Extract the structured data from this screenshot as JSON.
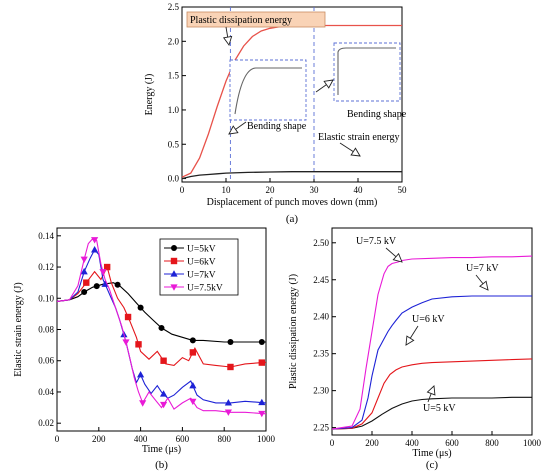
{
  "chart_data": [
    {
      "panel": "a",
      "type": "line",
      "caption": "(a)",
      "xlabel": "Displacement of punch moves down (mm)",
      "ylabel": "Energy (J)",
      "xlim": [
        0,
        50
      ],
      "ylim": [
        -0.05,
        2.5
      ],
      "xticks": [
        "0",
        "10",
        "20",
        "30",
        "40",
        "50"
      ],
      "yticks": [
        "0.0",
        "0.5",
        "1.0",
        "1.5",
        "2.0",
        "2.5"
      ],
      "grid": false,
      "colors": {
        "plastic": "#e8524a",
        "elastic": "#222222",
        "marker_line": "#5b6fd6",
        "note_fill": "#f9d3b6"
      },
      "series": [
        {
          "name": "Plastic dissipation energy",
          "x": [
            0,
            2,
            4,
            6,
            8,
            10,
            12,
            14,
            16,
            18,
            20,
            22,
            24,
            26,
            28,
            30,
            35,
            40,
            45,
            50
          ],
          "y": [
            0.02,
            0.08,
            0.3,
            0.65,
            1.05,
            1.42,
            1.72,
            1.93,
            2.07,
            2.15,
            2.19,
            2.21,
            2.22,
            2.23,
            2.23,
            2.23,
            2.23,
            2.23,
            2.23,
            2.23
          ]
        },
        {
          "name": "Elastic strain energy",
          "x": [
            0,
            2,
            4,
            6,
            8,
            10,
            15,
            20,
            25,
            30,
            35,
            40,
            45,
            50
          ],
          "y": [
            0.0,
            0.03,
            0.05,
            0.06,
            0.07,
            0.08,
            0.09,
            0.095,
            0.1,
            0.1,
            0.1,
            0.1,
            0.1,
            0.1
          ]
        }
      ],
      "vlines_x": [
        11,
        30
      ],
      "inset_label": "Bending shape"
    },
    {
      "panel": "b",
      "type": "line",
      "caption": "(b)",
      "xlabel": "Time (μs)",
      "ylabel": "Elastic strain energy (J)",
      "xlim": [
        0,
        1000
      ],
      "ylim": [
        0.015,
        0.145
      ],
      "xticks": [
        "0",
        "200",
        "400",
        "600",
        "800",
        "1000"
      ],
      "yticks": [
        "0.02",
        "0.04",
        "0.06",
        "0.08",
        "0.10",
        "0.12",
        "0.14"
      ],
      "grid": false,
      "legend_position": "top-right",
      "series": [
        {
          "name": "U=5kV",
          "color": "#000000",
          "marker": "circle",
          "x": [
            0,
            60,
            100,
            130,
            170,
            220,
            270,
            300,
            340,
            380,
            420,
            460,
            500,
            550,
            600,
            650,
            700,
            800,
            900,
            1000
          ],
          "y": [
            0.098,
            0.099,
            0.101,
            0.104,
            0.107,
            0.109,
            0.11,
            0.108,
            0.103,
            0.097,
            0.091,
            0.086,
            0.081,
            0.077,
            0.075,
            0.073,
            0.073,
            0.072,
            0.072,
            0.072
          ],
          "marker_x": [
            130,
            190,
            290,
            400,
            500,
            650,
            830,
            980
          ]
        },
        {
          "name": "U=6kV",
          "color": "#e4161b",
          "marker": "square",
          "x": [
            0,
            60,
            100,
            140,
            180,
            210,
            240,
            260,
            290,
            320,
            350,
            380,
            400,
            440,
            480,
            520,
            560,
            600,
            630,
            660,
            700,
            760,
            830,
            900,
            1000
          ],
          "y": [
            0.098,
            0.099,
            0.103,
            0.11,
            0.117,
            0.112,
            0.12,
            0.11,
            0.1,
            0.094,
            0.085,
            0.075,
            0.066,
            0.061,
            0.066,
            0.058,
            0.057,
            0.062,
            0.06,
            0.068,
            0.058,
            0.057,
            0.056,
            0.058,
            0.059
          ],
          "marker_x": [
            140,
            240,
            340,
            390,
            510,
            650,
            830,
            980
          ]
        },
        {
          "name": "U=7kV",
          "color": "#1d22d6",
          "marker": "triangle",
          "x": [
            0,
            60,
            100,
            130,
            160,
            180,
            200,
            220,
            240,
            260,
            280,
            300,
            330,
            360,
            380,
            400,
            420,
            450,
            480,
            500,
            530,
            560,
            600,
            640,
            670,
            700,
            760,
            830,
            900,
            1000
          ],
          "y": [
            0.098,
            0.099,
            0.104,
            0.117,
            0.126,
            0.131,
            0.128,
            0.112,
            0.106,
            0.1,
            0.094,
            0.086,
            0.072,
            0.055,
            0.046,
            0.051,
            0.045,
            0.039,
            0.044,
            0.04,
            0.036,
            0.038,
            0.043,
            0.047,
            0.038,
            0.035,
            0.033,
            0.033,
            0.034,
            0.033
          ],
          "marker_x": [
            130,
            180,
            230,
            320,
            400,
            510,
            650,
            820,
            980
          ]
        },
        {
          "name": "U=7.5kV",
          "color": "#e91ad7",
          "marker": "triangle-down",
          "x": [
            0,
            60,
            100,
            130,
            150,
            170,
            190,
            210,
            230,
            250,
            270,
            290,
            310,
            330,
            350,
            370,
            390,
            410,
            440,
            470,
            500,
            530,
            560,
            600,
            640,
            670,
            700,
            760,
            830,
            900,
            1000
          ],
          "y": [
            0.098,
            0.099,
            0.108,
            0.125,
            0.135,
            0.138,
            0.137,
            0.122,
            0.112,
            0.106,
            0.098,
            0.09,
            0.082,
            0.072,
            0.061,
            0.049,
            0.04,
            0.033,
            0.04,
            0.035,
            0.03,
            0.036,
            0.029,
            0.033,
            0.036,
            0.03,
            0.028,
            0.028,
            0.027,
            0.027,
            0.026
          ],
          "marker_x": [
            130,
            180,
            220,
            330,
            410,
            510,
            650,
            820,
            980
          ]
        }
      ]
    },
    {
      "panel": "c",
      "type": "line",
      "caption": "(c)",
      "xlabel": "Time (μs)",
      "ylabel": "Plastic dissipation energy (J)",
      "xlim": [
        0,
        1000
      ],
      "ylim": [
        2.24,
        2.52
      ],
      "xticks": [
        "0",
        "200",
        "400",
        "600",
        "800",
        "1000"
      ],
      "yticks": [
        "2.25",
        "2.30",
        "2.35",
        "2.40",
        "2.45",
        "2.50"
      ],
      "grid": false,
      "series": [
        {
          "name": "U=5 kV",
          "color": "#111111",
          "x": [
            0,
            100,
            150,
            200,
            250,
            300,
            350,
            400,
            450,
            500,
            600,
            700,
            800,
            900,
            1000
          ],
          "y": [
            2.248,
            2.249,
            2.252,
            2.259,
            2.268,
            2.276,
            2.282,
            2.286,
            2.288,
            2.289,
            2.29,
            2.29,
            2.29,
            2.291,
            2.291
          ]
        },
        {
          "name": "U=6 kV",
          "color": "#e4161b",
          "x": [
            0,
            100,
            150,
            200,
            230,
            260,
            290,
            320,
            350,
            400,
            450,
            500,
            600,
            700,
            800,
            900,
            1000
          ],
          "y": [
            2.248,
            2.249,
            2.255,
            2.27,
            2.29,
            2.31,
            2.322,
            2.328,
            2.332,
            2.335,
            2.337,
            2.338,
            2.339,
            2.34,
            2.341,
            2.342,
            2.343
          ]
        },
        {
          "name": "U=7 kV",
          "color": "#1d22d6",
          "x": [
            0,
            100,
            150,
            180,
            200,
            230,
            260,
            280,
            300,
            320,
            350,
            400,
            450,
            500,
            600,
            700,
            800,
            900,
            1000
          ],
          "y": [
            2.248,
            2.25,
            2.26,
            2.29,
            2.32,
            2.355,
            2.37,
            2.38,
            2.388,
            2.395,
            2.405,
            2.413,
            2.419,
            2.424,
            2.427,
            2.428,
            2.428,
            2.428,
            2.428
          ]
        },
        {
          "name": "U=7.5 kV",
          "color": "#e91ad7",
          "x": [
            0,
            100,
            140,
            170,
            200,
            230,
            260,
            280,
            300,
            330,
            350,
            400,
            500,
            600,
            700,
            800,
            900,
            1000
          ],
          "y": [
            2.248,
            2.252,
            2.275,
            2.33,
            2.38,
            2.43,
            2.458,
            2.468,
            2.472,
            2.474,
            2.476,
            2.478,
            2.479,
            2.48,
            2.48,
            2.481,
            2.481,
            2.482
          ]
        }
      ]
    }
  ]
}
